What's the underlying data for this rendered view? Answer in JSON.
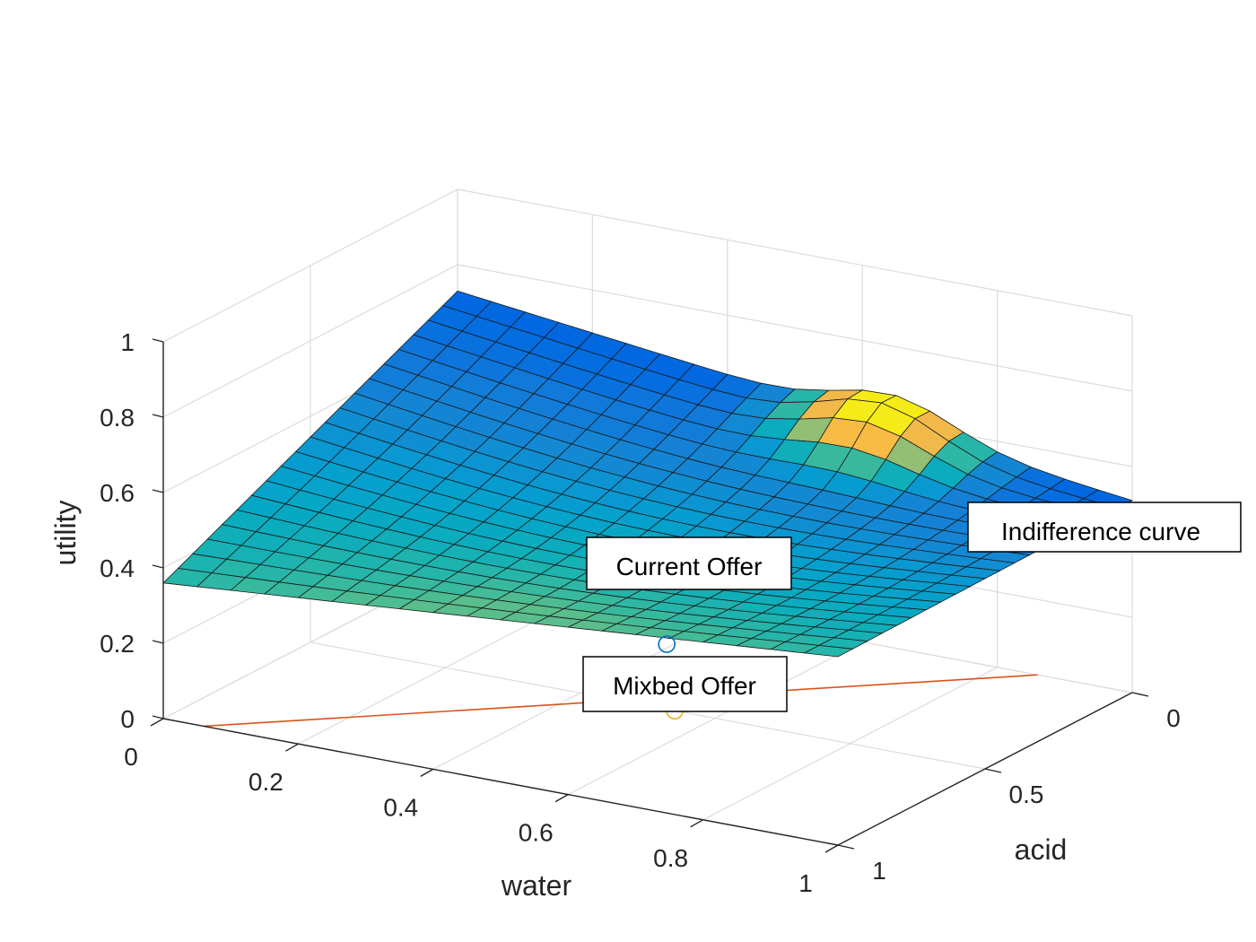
{
  "chart_data": {
    "type": "surface",
    "title": "",
    "xlabel": "water",
    "ylabel": "acid",
    "zlabel": "utility",
    "xlim": [
      0,
      1
    ],
    "ylim": [
      0,
      1
    ],
    "zlim": [
      0,
      1
    ],
    "x_ticks": [
      0,
      0.2,
      0.4,
      0.6,
      0.8,
      1
    ],
    "x_tick_labels": [
      "0",
      "0.2",
      "0.4",
      "0.6",
      "0.8",
      "1"
    ],
    "y_ticks": [
      0,
      0.5,
      1
    ],
    "y_tick_labels": [
      "0",
      "0.5",
      "1"
    ],
    "z_ticks": [
      0,
      0.2,
      0.4,
      0.6,
      0.8,
      1
    ],
    "z_tick_labels": [
      "0",
      "0.2",
      "0.4",
      "0.6",
      "0.8",
      "1"
    ],
    "grid": true,
    "colormap": "parula",
    "surface": {
      "description_values": "utility over water x acid grid, 21x21 mesh",
      "corner_values": {
        "water0_acid0": 0.73,
        "water1_acid0": 0.51,
        "water0_acid1": 0.36,
        "water1_acid1": 0.5
      },
      "peak": {
        "water": 0.65,
        "acid": 0.05,
        "utility": 0.62
      }
    },
    "series": [
      {
        "kind": "indifference_line",
        "color": "#D95319",
        "points": [
          {
            "water": 0.06,
            "acid": 1.0,
            "utility": 0.0
          },
          {
            "water": 0.86,
            "acid": 0.0,
            "utility": 0.0
          }
        ]
      },
      {
        "kind": "marker",
        "color": "#0072BD",
        "point": {
          "water": 0.55,
          "acid": 0.55,
          "utility": 0.2
        }
      },
      {
        "kind": "marker",
        "color": "#EDB120",
        "point": {
          "water": 0.54,
          "acid": 0.5,
          "utility": 0.0
        }
      }
    ],
    "annotations": [
      {
        "id": "current",
        "text": "Current Offer"
      },
      {
        "id": "mixbed",
        "text": "Mixbed Offer"
      },
      {
        "id": "indiff",
        "text": "Indifference curve"
      }
    ]
  }
}
